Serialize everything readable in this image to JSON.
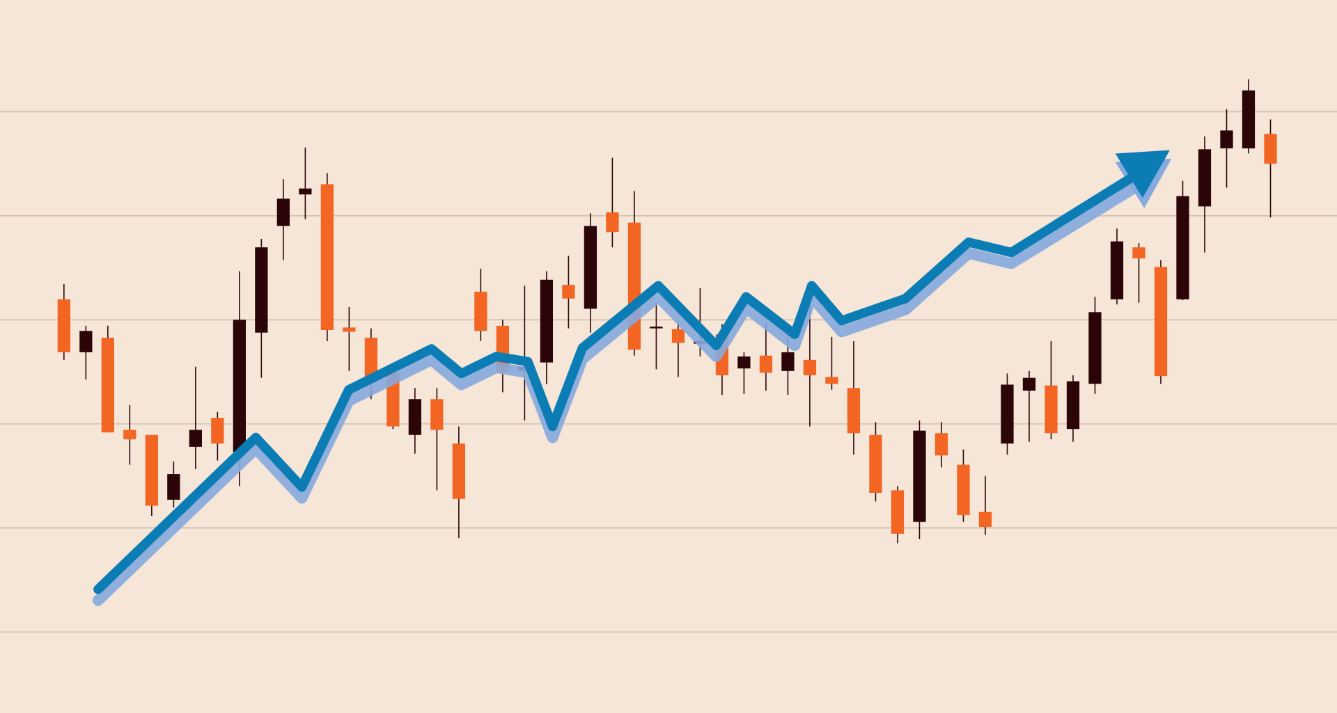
{
  "chart_data": {
    "type": "candlestick",
    "open": [
      485,
      423,
      440,
      332,
      326,
      250,
      312,
      346,
      306,
      446,
      571,
      608,
      620,
      452,
      440,
      399,
      326,
      368,
      316,
      494,
      454,
      401,
      411,
      502,
      474,
      587,
      575,
      451,
      450,
      433,
      444,
      404,
      419,
      401,
      414,
      394,
      381,
      326,
      261,
      224,
      328,
      291,
      236,
      316,
      378,
      384,
      333,
      386,
      485,
      546,
      523,
      485,
      594,
      662,
      662,
      679
    ],
    "high": [
      503,
      454,
      454,
      361,
      326,
      295,
      406,
      353,
      518,
      556,
      626,
      663,
      633,
      476,
      451,
      401,
      381,
      381,
      336,
      521,
      461,
      501,
      518,
      536,
      586,
      651,
      612,
      481,
      458,
      498,
      456,
      423,
      458,
      451,
      491,
      441,
      436,
      341,
      266,
      343,
      341,
      309,
      278,
      398,
      401,
      436,
      396,
      488,
      568,
      551,
      531,
      624,
      676,
      708,
      743,
      696
    ],
    "low": [
      414,
      391,
      329,
      291,
      231,
      241,
      286,
      296,
      266,
      393,
      531,
      579,
      436,
      401,
      368,
      333,
      304,
      261,
      205,
      436,
      376,
      343,
      386,
      451,
      446,
      546,
      419,
      403,
      394,
      418,
      373,
      374,
      378,
      373,
      336,
      379,
      303,
      248,
      199,
      204,
      288,
      224,
      209,
      303,
      318,
      321,
      318,
      374,
      479,
      481,
      386,
      484,
      540,
      616,
      656,
      581
    ],
    "close": [
      423,
      448,
      329,
      321,
      243,
      280,
      332,
      316,
      461,
      546,
      603,
      615,
      449,
      447,
      391,
      336,
      368,
      332,
      251,
      448,
      399,
      406,
      508,
      486,
      571,
      564,
      426,
      453,
      434,
      436,
      396,
      418,
      399,
      423,
      396,
      386,
      328,
      258,
      210,
      331,
      302,
      232,
      218,
      385,
      393,
      328,
      389,
      470,
      553,
      533,
      395,
      606,
      661,
      683,
      730,
      644
    ],
    "colors": {
      "up": "#2b0508",
      "down": "#f26522"
    },
    "ylim": [
      0,
      836
    ],
    "yticks": [
      95,
      217,
      339,
      461,
      583,
      705
    ],
    "grid": true
  }
}
